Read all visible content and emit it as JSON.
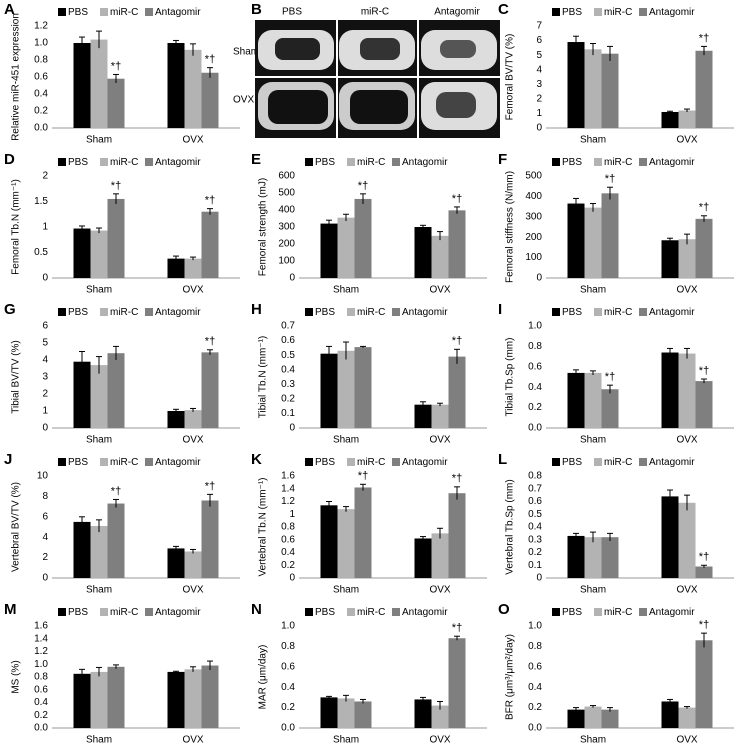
{
  "chart_data": [
    {
      "type": "bar",
      "panel": "A",
      "y_label": "Relative miR-451 expression",
      "categories": [
        "Sham",
        "OVX"
      ],
      "series": [
        {
          "name": "PBS",
          "color": "#000000",
          "values": [
            1.0,
            1.0
          ],
          "errors": [
            0.07,
            0.03
          ],
          "annotations": [
            null,
            null
          ]
        },
        {
          "name": "miR-C",
          "color": "#b3b3b3",
          "values": [
            1.04,
            0.92
          ],
          "errors": [
            0.1,
            0.07
          ],
          "annotations": [
            null,
            null
          ]
        },
        {
          "name": "Antagomir",
          "color": "#7f7f7f",
          "values": [
            0.58,
            0.65
          ],
          "errors": [
            0.05,
            0.06
          ],
          "annotations": [
            "*†",
            "*†"
          ]
        }
      ],
      "ylim": [
        0,
        1.2
      ],
      "yticks": [
        {
          "value": 0,
          "label": "0.0"
        },
        0.2,
        0.4,
        0.6,
        0.8,
        {
          "value": 1,
          "label": "1.0"
        },
        1.2
      ]
    },
    {
      "type": "bar",
      "panel": "C",
      "y_label": "Femoral BV/TV (%)",
      "categories": [
        "Sham",
        "OVX"
      ],
      "series": [
        {
          "name": "PBS",
          "color": "#000000",
          "values": [
            5.9,
            1.1
          ],
          "errors": [
            0.4,
            0.05
          ],
          "annotations": [
            null,
            null
          ]
        },
        {
          "name": "miR-C",
          "color": "#b3b3b3",
          "values": [
            5.4,
            1.2
          ],
          "errors": [
            0.4,
            0.1
          ],
          "annotations": [
            null,
            null
          ]
        },
        {
          "name": "Antagomir",
          "color": "#7f7f7f",
          "values": [
            5.1,
            5.3
          ],
          "errors": [
            0.5,
            0.3
          ],
          "annotations": [
            null,
            "*†"
          ]
        }
      ],
      "ylim": [
        0,
        7
      ],
      "yticks": [
        0,
        1,
        2,
        3,
        4,
        5,
        6,
        7
      ]
    },
    {
      "type": "bar",
      "panel": "D",
      "y_label": "Femoral Tb.N (mm⁻¹)",
      "categories": [
        "Sham",
        "OVX"
      ],
      "series": [
        {
          "name": "PBS",
          "color": "#000000",
          "values": [
            0.97,
            0.38
          ],
          "errors": [
            0.05,
            0.05
          ],
          "annotations": [
            null,
            null
          ]
        },
        {
          "name": "miR-C",
          "color": "#b3b3b3",
          "values": [
            0.93,
            0.38
          ],
          "errors": [
            0.05,
            0.03
          ],
          "annotations": [
            null,
            null
          ]
        },
        {
          "name": "Antagomir",
          "color": "#7f7f7f",
          "values": [
            1.55,
            1.3
          ],
          "errors": [
            0.1,
            0.06
          ],
          "annotations": [
            "*†",
            "*†"
          ]
        }
      ],
      "ylim": [
        0,
        2
      ],
      "yticks": [
        0,
        0.5,
        1,
        1.5,
        2
      ]
    },
    {
      "type": "bar",
      "panel": "E",
      "y_label": "Femoral strength (mJ)",
      "categories": [
        "Sham",
        "OVX"
      ],
      "series": [
        {
          "name": "PBS",
          "color": "#000000",
          "values": [
            320,
            300
          ],
          "errors": [
            20,
            10
          ],
          "annotations": [
            null,
            null
          ]
        },
        {
          "name": "miR-C",
          "color": "#b3b3b3",
          "values": [
            355,
            248
          ],
          "errors": [
            20,
            25
          ],
          "annotations": [
            null,
            null
          ]
        },
        {
          "name": "Antagomir",
          "color": "#7f7f7f",
          "values": [
            465,
            398
          ],
          "errors": [
            30,
            20
          ],
          "annotations": [
            "*†",
            "*†"
          ]
        }
      ],
      "ylim": [
        0,
        600
      ],
      "yticks": [
        0,
        100,
        200,
        300,
        400,
        500,
        600
      ]
    },
    {
      "type": "bar",
      "panel": "F",
      "y_label": "Femoral stiffness (N/mm)",
      "categories": [
        "Sham",
        "OVX"
      ],
      "series": [
        {
          "name": "PBS",
          "color": "#000000",
          "values": [
            365,
            185
          ],
          "errors": [
            25,
            10
          ],
          "annotations": [
            null,
            null
          ]
        },
        {
          "name": "miR-C",
          "color": "#b3b3b3",
          "values": [
            345,
            190
          ],
          "errors": [
            20,
            25
          ],
          "annotations": [
            null,
            null
          ]
        },
        {
          "name": "Antagomir",
          "color": "#7f7f7f",
          "values": [
            415,
            290
          ],
          "errors": [
            30,
            15
          ],
          "annotations": [
            "*†",
            "*†"
          ]
        }
      ],
      "ylim": [
        0,
        500
      ],
      "yticks": [
        0,
        100,
        200,
        300,
        400,
        500
      ]
    },
    {
      "type": "bar",
      "panel": "G",
      "y_label": "Tibial BV/TV (%)",
      "categories": [
        "Sham",
        "OVX"
      ],
      "series": [
        {
          "name": "PBS",
          "color": "#000000",
          "values": [
            3.9,
            1.0
          ],
          "errors": [
            0.6,
            0.1
          ],
          "annotations": [
            null,
            null
          ]
        },
        {
          "name": "miR-C",
          "color": "#b3b3b3",
          "values": [
            3.7,
            1.05
          ],
          "errors": [
            0.5,
            0.1
          ],
          "annotations": [
            null,
            null
          ]
        },
        {
          "name": "Antagomir",
          "color": "#7f7f7f",
          "values": [
            4.4,
            4.45
          ],
          "errors": [
            0.4,
            0.15
          ],
          "annotations": [
            null,
            "*†"
          ]
        }
      ],
      "ylim": [
        0,
        6
      ],
      "yticks": [
        0,
        1,
        2,
        3,
        4,
        5,
        6
      ]
    },
    {
      "type": "bar",
      "panel": "H",
      "y_label": "Tibial Tb.N (mm⁻¹)",
      "categories": [
        "Sham",
        "OVX"
      ],
      "series": [
        {
          "name": "PBS",
          "color": "#000000",
          "values": [
            0.51,
            0.16
          ],
          "errors": [
            0.05,
            0.02
          ],
          "annotations": [
            null,
            null
          ]
        },
        {
          "name": "miR-C",
          "color": "#b3b3b3",
          "values": [
            0.53,
            0.16
          ],
          "errors": [
            0.06,
            0.01
          ],
          "annotations": [
            null,
            null
          ]
        },
        {
          "name": "Antagomir",
          "color": "#7f7f7f",
          "values": [
            0.555,
            0.49
          ],
          "errors": [
            0.005,
            0.05
          ],
          "annotations": [
            null,
            "*†"
          ]
        }
      ],
      "ylim": [
        0,
        0.7
      ],
      "yticks": [
        0,
        0.1,
        0.2,
        0.3,
        0.4,
        0.5,
        0.6,
        0.7
      ]
    },
    {
      "type": "bar",
      "panel": "I",
      "y_label": "Tibial Tb.Sp (mm)",
      "categories": [
        "Sham",
        "OVX"
      ],
      "series": [
        {
          "name": "PBS",
          "color": "#000000",
          "values": [
            0.54,
            0.74
          ],
          "errors": [
            0.03,
            0.04
          ],
          "annotations": [
            null,
            null
          ]
        },
        {
          "name": "miR-C",
          "color": "#b3b3b3",
          "values": [
            0.54,
            0.73
          ],
          "errors": [
            0.02,
            0.05
          ],
          "annotations": [
            null,
            null
          ]
        },
        {
          "name": "Antagomir",
          "color": "#7f7f7f",
          "values": [
            0.38,
            0.46
          ],
          "errors": [
            0.04,
            0.02
          ],
          "annotations": [
            "*†",
            "*†"
          ]
        }
      ],
      "ylim": [
        0,
        1
      ],
      "yticks": [
        {
          "value": 0,
          "label": "0.0"
        },
        0.2,
        0.4,
        0.6,
        0.8,
        {
          "value": 1,
          "label": "1.0"
        }
      ]
    },
    {
      "type": "bar",
      "panel": "J",
      "y_label": "Vertebral BV/TV (%)",
      "categories": [
        "Sham",
        "OVX"
      ],
      "series": [
        {
          "name": "PBS",
          "color": "#000000",
          "values": [
            5.5,
            2.9
          ],
          "errors": [
            0.5,
            0.2
          ],
          "annotations": [
            null,
            null
          ]
        },
        {
          "name": "miR-C",
          "color": "#b3b3b3",
          "values": [
            5.1,
            2.6
          ],
          "errors": [
            0.6,
            0.2
          ],
          "annotations": [
            null,
            null
          ]
        },
        {
          "name": "Antagomir",
          "color": "#7f7f7f",
          "values": [
            7.3,
            7.6
          ],
          "errors": [
            0.4,
            0.6
          ],
          "annotations": [
            "*†",
            "*†"
          ]
        }
      ],
      "ylim": [
        0,
        10
      ],
      "yticks": [
        0,
        2,
        4,
        6,
        8,
        10
      ]
    },
    {
      "type": "bar",
      "panel": "K",
      "y_label": "Vertebral Tb.N (mm⁻¹)",
      "categories": [
        "Sham",
        "OVX"
      ],
      "series": [
        {
          "name": "PBS",
          "color": "#000000",
          "values": [
            1.14,
            0.62
          ],
          "errors": [
            0.06,
            0.03
          ],
          "annotations": [
            null,
            null
          ]
        },
        {
          "name": "miR-C",
          "color": "#b3b3b3",
          "values": [
            1.08,
            0.7
          ],
          "errors": [
            0.04,
            0.08
          ],
          "annotations": [
            null,
            null
          ]
        },
        {
          "name": "Antagomir",
          "color": "#7f7f7f",
          "values": [
            1.42,
            1.33
          ],
          "errors": [
            0.05,
            0.1
          ],
          "annotations": [
            "*†",
            "*†"
          ]
        }
      ],
      "ylim": [
        0,
        1.6
      ],
      "yticks": [
        0,
        0.2,
        0.4,
        0.6,
        0.8,
        1,
        1.2,
        1.4,
        1.6
      ]
    },
    {
      "type": "bar",
      "panel": "L",
      "y_label": "Vertebral Tb.Sp (mm)",
      "categories": [
        "Sham",
        "OVX"
      ],
      "series": [
        {
          "name": "PBS",
          "color": "#000000",
          "values": [
            0.33,
            0.64
          ],
          "errors": [
            0.02,
            0.05
          ],
          "annotations": [
            null,
            null
          ]
        },
        {
          "name": "miR-C",
          "color": "#b3b3b3",
          "values": [
            0.32,
            0.59
          ],
          "errors": [
            0.04,
            0.06
          ],
          "annotations": [
            null,
            null
          ]
        },
        {
          "name": "Antagomir",
          "color": "#7f7f7f",
          "values": [
            0.32,
            0.09
          ],
          "errors": [
            0.03,
            0.01
          ],
          "annotations": [
            null,
            "*†"
          ]
        }
      ],
      "ylim": [
        0,
        0.8
      ],
      "yticks": [
        0,
        0.1,
        0.2,
        0.3,
        0.4,
        0.5,
        0.6,
        0.7,
        0.8
      ]
    },
    {
      "type": "bar",
      "panel": "M",
      "y_label": "MS (%)",
      "categories": [
        "Sham",
        "OVX"
      ],
      "series": [
        {
          "name": "PBS",
          "color": "#000000",
          "values": [
            0.85,
            0.88
          ],
          "errors": [
            0.07,
            0.01
          ],
          "annotations": [
            null,
            null
          ]
        },
        {
          "name": "miR-C",
          "color": "#b3b3b3",
          "values": [
            0.88,
            0.92
          ],
          "errors": [
            0.07,
            0.04
          ],
          "annotations": [
            null,
            null
          ]
        },
        {
          "name": "Antagomir",
          "color": "#7f7f7f",
          "values": [
            0.96,
            0.98
          ],
          "errors": [
            0.03,
            0.07
          ],
          "annotations": [
            null,
            null
          ]
        }
      ],
      "ylim": [
        0,
        1.6
      ],
      "yticks": [
        {
          "value": 0,
          "label": "0.0"
        },
        0.2,
        0.4,
        0.6,
        0.8,
        {
          "value": 1,
          "label": "1.0"
        },
        1.2,
        1.4,
        1.6
      ]
    },
    {
      "type": "bar",
      "panel": "N",
      "y_label": "MAR (μm/day)",
      "categories": [
        "Sham",
        "OVX"
      ],
      "series": [
        {
          "name": "PBS",
          "color": "#000000",
          "values": [
            0.3,
            0.28
          ],
          "errors": [
            0.01,
            0.02
          ],
          "annotations": [
            null,
            null
          ]
        },
        {
          "name": "miR-C",
          "color": "#b3b3b3",
          "values": [
            0.29,
            0.22
          ],
          "errors": [
            0.03,
            0.04
          ],
          "annotations": [
            null,
            null
          ]
        },
        {
          "name": "Antagomir",
          "color": "#7f7f7f",
          "values": [
            0.26,
            0.88
          ],
          "errors": [
            0.02,
            0.02
          ],
          "annotations": [
            null,
            "*†"
          ]
        }
      ],
      "ylim": [
        0,
        1
      ],
      "yticks": [
        {
          "value": 0,
          "label": "0.0"
        },
        0.2,
        0.4,
        0.6,
        0.8,
        {
          "value": 1,
          "label": "1.0"
        }
      ]
    },
    {
      "type": "bar",
      "panel": "O",
      "y_label": "BFR (μm³/μm²/day)",
      "categories": [
        "Sham",
        "OVX"
      ],
      "series": [
        {
          "name": "PBS",
          "color": "#000000",
          "values": [
            0.18,
            0.26
          ],
          "errors": [
            0.02,
            0.02
          ],
          "annotations": [
            null,
            null
          ]
        },
        {
          "name": "miR-C",
          "color": "#b3b3b3",
          "values": [
            0.21,
            0.2
          ],
          "errors": [
            0.01,
            0.01
          ],
          "annotations": [
            null,
            null
          ]
        },
        {
          "name": "Antagomir",
          "color": "#7f7f7f",
          "values": [
            0.18,
            0.86
          ],
          "errors": [
            0.02,
            0.07
          ],
          "annotations": [
            null,
            "*†"
          ]
        }
      ],
      "ylim": [
        0,
        1
      ],
      "yticks": [
        {
          "value": 0,
          "label": "0.0"
        },
        0.2,
        0.4,
        0.6,
        0.8,
        {
          "value": 1,
          "label": "1.0"
        }
      ]
    }
  ],
  "image_panel": {
    "panel": "B",
    "columns": [
      "PBS",
      "miR-C",
      "Antagomir"
    ],
    "rows": [
      "Sham",
      "OVX"
    ]
  }
}
